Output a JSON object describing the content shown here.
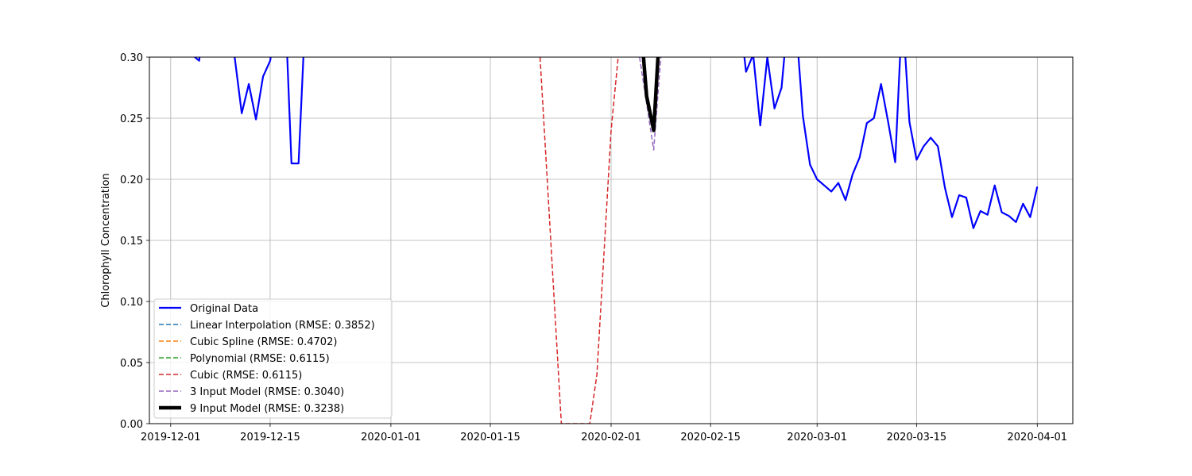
{
  "chart_data": {
    "type": "line",
    "title": "",
    "xlabel": "",
    "ylabel": "Chlorophyll Concentration",
    "xlim": [
      "2019-11-28",
      "2020-04-06"
    ],
    "ylim": [
      0.0,
      0.3
    ],
    "grid": true,
    "legend_position": "lower-left",
    "x_ticks": [
      "2019-12-01",
      "2019-12-15",
      "2020-01-01",
      "2020-01-15",
      "2020-02-01",
      "2020-02-15",
      "2020-03-01",
      "2020-03-15",
      "2020-04-01"
    ],
    "y_ticks": [
      "0.00",
      "0.05",
      "0.10",
      "0.15",
      "0.20",
      "0.25",
      "0.30"
    ],
    "series": [
      {
        "name": "Original Data",
        "color": "#0000ff",
        "style": "solid",
        "width": 2.2,
        "points": [
          [
            "2019-12-03",
            0.34
          ],
          [
            "2019-12-04",
            0.302
          ],
          [
            "2019-12-05",
            0.297
          ],
          [
            "2019-12-06",
            0.35
          ],
          [
            "2019-12-09",
            0.36
          ],
          [
            "2019-12-10",
            0.3
          ],
          [
            "2019-12-11",
            0.254
          ],
          [
            "2019-12-12",
            0.278
          ],
          [
            "2019-12-13",
            0.249
          ],
          [
            "2019-12-14",
            0.284
          ],
          [
            "2019-12-15",
            0.297
          ],
          [
            "2019-12-16",
            0.34
          ],
          [
            "2019-12-17",
            0.36
          ],
          [
            "2019-12-18",
            0.213
          ],
          [
            "2019-12-19",
            0.213
          ],
          [
            "2019-12-20",
            0.34
          ],
          [
            "2020-02-19",
            0.34
          ],
          [
            "2020-02-20",
            0.288
          ],
          [
            "2020-02-21",
            0.302
          ],
          [
            "2020-02-22",
            0.244
          ],
          [
            "2020-02-23",
            0.3
          ],
          [
            "2020-02-24",
            0.258
          ],
          [
            "2020-02-25",
            0.275
          ],
          [
            "2020-02-26",
            0.34
          ],
          [
            "2020-02-27",
            0.33
          ],
          [
            "2020-02-28",
            0.252
          ],
          [
            "2020-02-29",
            0.212
          ],
          [
            "2020-03-01",
            0.2
          ],
          [
            "2020-03-02",
            0.195
          ],
          [
            "2020-03-03",
            0.19
          ],
          [
            "2020-03-04",
            0.197
          ],
          [
            "2020-03-05",
            0.183
          ],
          [
            "2020-03-06",
            0.204
          ],
          [
            "2020-03-07",
            0.218
          ],
          [
            "2020-03-08",
            0.246
          ],
          [
            "2020-03-09",
            0.25
          ],
          [
            "2020-03-10",
            0.278
          ],
          [
            "2020-03-11",
            0.247
          ],
          [
            "2020-03-12",
            0.214
          ],
          [
            "2020-03-13",
            0.34
          ],
          [
            "2020-03-14",
            0.247
          ],
          [
            "2020-03-15",
            0.216
          ],
          [
            "2020-03-16",
            0.227
          ],
          [
            "2020-03-17",
            0.234
          ],
          [
            "2020-03-18",
            0.227
          ],
          [
            "2020-03-19",
            0.193
          ],
          [
            "2020-03-20",
            0.169
          ],
          [
            "2020-03-21",
            0.187
          ],
          [
            "2020-03-22",
            0.185
          ],
          [
            "2020-03-23",
            0.16
          ],
          [
            "2020-03-24",
            0.174
          ],
          [
            "2020-03-25",
            0.171
          ],
          [
            "2020-03-26",
            0.195
          ],
          [
            "2020-03-27",
            0.173
          ],
          [
            "2020-03-28",
            0.17
          ],
          [
            "2020-03-29",
            0.165
          ],
          [
            "2020-03-30",
            0.18
          ],
          [
            "2020-03-31",
            0.169
          ],
          [
            "2020-04-01",
            0.194
          ]
        ]
      },
      {
        "name": "Linear Interpolation (RMSE: 0.3852)",
        "color": "#1f77b4",
        "style": "dashed",
        "width": 1.5,
        "points": []
      },
      {
        "name": "Cubic Spline (RMSE: 0.4702)",
        "color": "#ff7f0e",
        "style": "dashed",
        "width": 1.5,
        "points": []
      },
      {
        "name": "Polynomial (RMSE: 0.6115)",
        "color": "#2ca02c",
        "style": "dashed",
        "width": 1.5,
        "points": []
      },
      {
        "name": "Cubic (RMSE: 0.6115)",
        "color": "#d62728",
        "style": "dashed",
        "width": 1.5,
        "points": [
          [
            "2020-01-22",
            0.3
          ],
          [
            "2020-01-23",
            0.2
          ],
          [
            "2020-01-24",
            0.1
          ],
          [
            "2020-01-25",
            0.0
          ],
          [
            "2020-01-29",
            0.0
          ],
          [
            "2020-01-30",
            0.04
          ],
          [
            "2020-01-31",
            0.14
          ],
          [
            "2020-02-01",
            0.24
          ],
          [
            "2020-02-02",
            0.3
          ]
        ]
      },
      {
        "name": "3 Input Model (RMSE: 0.3040)",
        "color": "#9467bd",
        "style": "dashed",
        "width": 1.5,
        "points": [
          [
            "2020-02-05",
            0.3
          ],
          [
            "2020-02-06",
            0.262
          ],
          [
            "2020-02-07",
            0.224
          ],
          [
            "2020-02-08",
            0.3
          ]
        ]
      },
      {
        "name": "9 Input Model (RMSE: 0.3238)",
        "color": "#000000",
        "style": "solid",
        "width": 4.5,
        "points": [
          [
            "2020-02-05",
            0.34
          ],
          [
            "2020-02-06",
            0.268
          ],
          [
            "2020-02-07",
            0.24
          ],
          [
            "2020-02-08",
            0.34
          ]
        ]
      }
    ]
  }
}
